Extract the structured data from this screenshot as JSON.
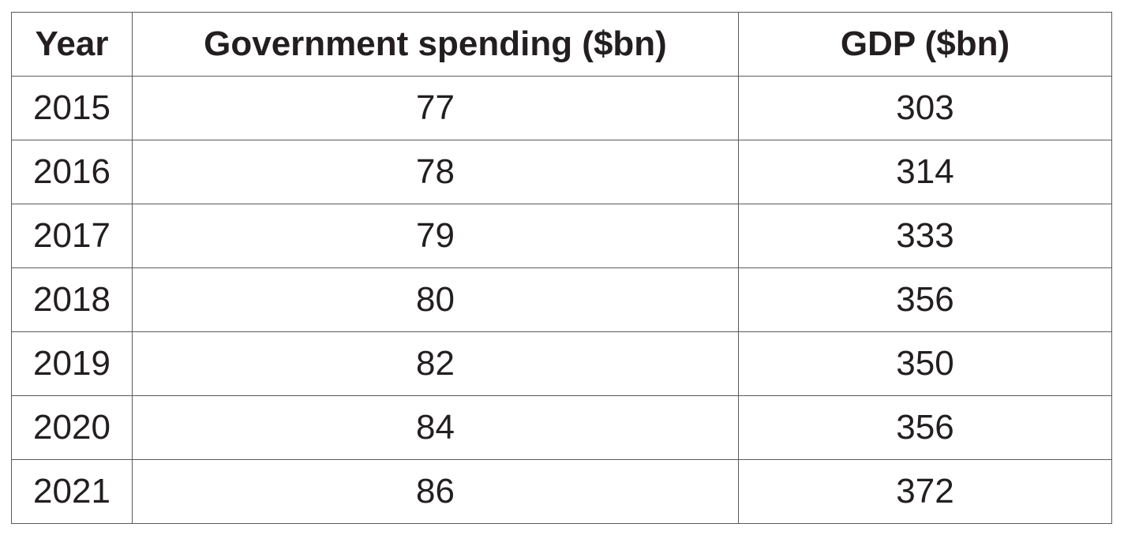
{
  "table": {
    "header": [
      "Year",
      "Government spending ($bn)",
      "GDP ($bn)"
    ],
    "rows": [
      [
        2015,
        77,
        303
      ],
      [
        2016,
        78,
        314
      ],
      [
        2017,
        79,
        333
      ],
      [
        2018,
        80,
        356
      ],
      [
        2019,
        82,
        350
      ],
      [
        2020,
        84,
        356
      ],
      [
        2021,
        86,
        372
      ]
    ]
  }
}
